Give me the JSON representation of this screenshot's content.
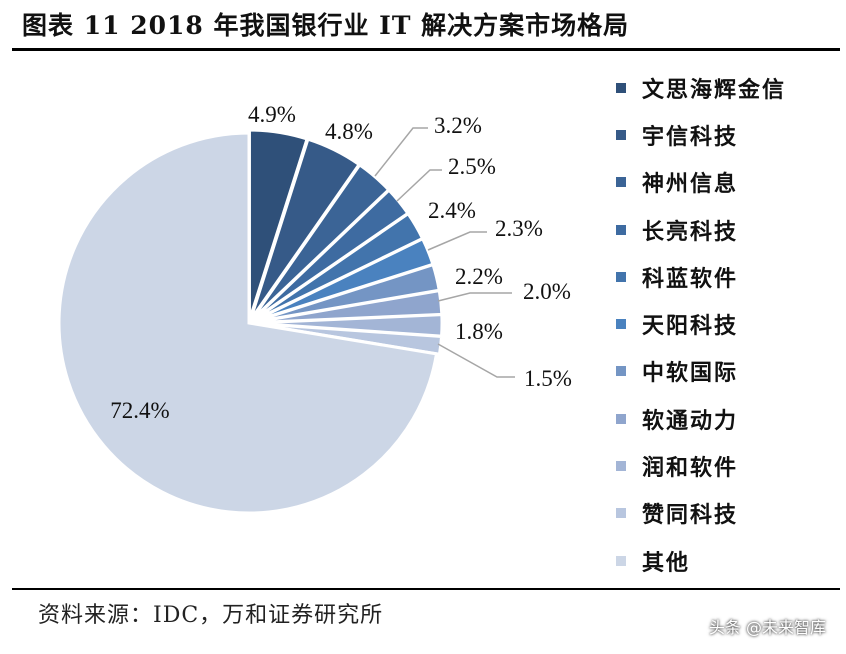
{
  "title": "图表 11   2018 年我国银行业 IT 解决方案市场格局",
  "source": "资料来源：IDC，万和证券研究所",
  "watermark": "头条 @未来智库",
  "chart_data": {
    "type": "pie",
    "start": "12 o'clock, clockwise",
    "legend_position": "right",
    "categories": [
      "文思海辉金信",
      "宇信科技",
      "神州信息",
      "长亮科技",
      "科蓝软件",
      "天阳科技",
      "中软国际",
      "软通动力",
      "润和软件",
      "赞同科技",
      "其他"
    ],
    "values": [
      4.9,
      4.8,
      3.2,
      2.5,
      2.4,
      2.3,
      2.2,
      2.0,
      1.8,
      1.5,
      72.4
    ],
    "labels": [
      "4.9%",
      "4.8%",
      "3.2%",
      "2.5%",
      "2.4%",
      "2.3%",
      "2.2%",
      "2.0%",
      "1.8%",
      "1.5%",
      "72.4%"
    ],
    "colors": [
      "#2f5079",
      "#365a88",
      "#3b6496",
      "#3e6ba1",
      "#4274ac",
      "#4a82bf",
      "#7495c4",
      "#8fa5cd",
      "#a3b5d6",
      "#b8c6df",
      "#ccd6e6"
    ]
  }
}
